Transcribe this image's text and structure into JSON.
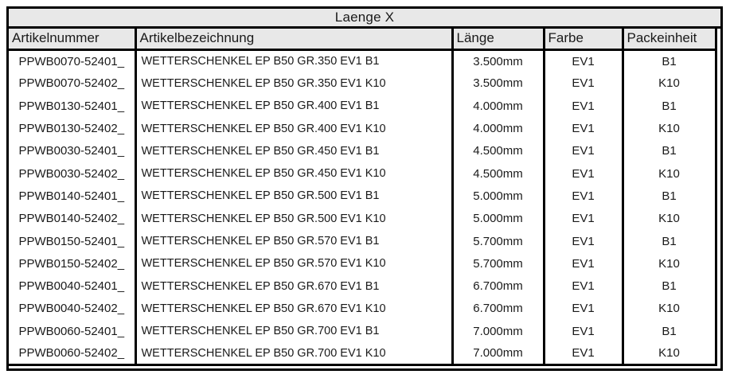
{
  "title": "Laenge X",
  "colors": {
    "header_bg": "#e8e8e8",
    "border": "#000000",
    "text": "#1a1a1a",
    "row_bg": "#ffffff"
  },
  "table": {
    "columns": [
      {
        "key": "artikelnummer",
        "label": "Artikelnummer"
      },
      {
        "key": "artikelbezeichnung",
        "label": "Artikelbezeichnung"
      },
      {
        "key": "laenge",
        "label": "Länge"
      },
      {
        "key": "farbe",
        "label": "Farbe"
      },
      {
        "key": "packeinheit",
        "label": "Packeinheit"
      }
    ],
    "rows": [
      {
        "artikelnummer": "PPWB0070-52401_",
        "artikelbezeichnung": "WETTERSCHENKEL EP B50 GR.350 EV1 B1",
        "laenge": "3.500mm",
        "farbe": "EV1",
        "packeinheit": "B1"
      },
      {
        "artikelnummer": "PPWB0070-52402_",
        "artikelbezeichnung": "WETTERSCHENKEL EP B50 GR.350 EV1 K10",
        "laenge": "3.500mm",
        "farbe": "EV1",
        "packeinheit": "K10"
      },
      {
        "artikelnummer": "PPWB0130-52401_",
        "artikelbezeichnung": "WETTERSCHENKEL EP B50 GR.400 EV1 B1",
        "laenge": "4.000mm",
        "farbe": "EV1",
        "packeinheit": "B1"
      },
      {
        "artikelnummer": "PPWB0130-52402_",
        "artikelbezeichnung": "WETTERSCHENKEL EP B50 GR.400 EV1 K10",
        "laenge": "4.000mm",
        "farbe": "EV1",
        "packeinheit": "K10"
      },
      {
        "artikelnummer": "PPWB0030-52401_",
        "artikelbezeichnung": "WETTERSCHENKEL EP B50 GR.450 EV1 B1",
        "laenge": "4.500mm",
        "farbe": "EV1",
        "packeinheit": "B1"
      },
      {
        "artikelnummer": "PPWB0030-52402_",
        "artikelbezeichnung": "WETTERSCHENKEL EP B50 GR.450 EV1 K10",
        "laenge": "4.500mm",
        "farbe": "EV1",
        "packeinheit": "K10"
      },
      {
        "artikelnummer": "PPWB0140-52401_",
        "artikelbezeichnung": "WETTERSCHENKEL EP B50 GR.500 EV1 B1",
        "laenge": "5.000mm",
        "farbe": "EV1",
        "packeinheit": "B1"
      },
      {
        "artikelnummer": "PPWB0140-52402_",
        "artikelbezeichnung": "WETTERSCHENKEL EP B50 GR.500 EV1 K10",
        "laenge": "5.000mm",
        "farbe": "EV1",
        "packeinheit": "K10"
      },
      {
        "artikelnummer": "PPWB0150-52401_",
        "artikelbezeichnung": "WETTERSCHENKEL EP B50 GR.570 EV1 B1",
        "laenge": "5.700mm",
        "farbe": "EV1",
        "packeinheit": "B1"
      },
      {
        "artikelnummer": "PPWB0150-52402_",
        "artikelbezeichnung": "WETTERSCHENKEL EP B50 GR.570 EV1 K10",
        "laenge": "5.700mm",
        "farbe": "EV1",
        "packeinheit": "K10"
      },
      {
        "artikelnummer": "PPWB0040-52401_",
        "artikelbezeichnung": "WETTERSCHENKEL EP B50 GR.670 EV1 B1",
        "laenge": "6.700mm",
        "farbe": "EV1",
        "packeinheit": "B1"
      },
      {
        "artikelnummer": "PPWB0040-52402_",
        "artikelbezeichnung": "WETTERSCHENKEL EP B50 GR.670 EV1 K10",
        "laenge": "6.700mm",
        "farbe": "EV1",
        "packeinheit": "K10"
      },
      {
        "artikelnummer": "PPWB0060-52401_",
        "artikelbezeichnung": "WETTERSCHENKEL EP B50 GR.700 EV1 B1",
        "laenge": "7.000mm",
        "farbe": "EV1",
        "packeinheit": "B1"
      },
      {
        "artikelnummer": "PPWB0060-52402_",
        "artikelbezeichnung": "WETTERSCHENKEL EP B50 GR.700 EV1 K10",
        "laenge": "7.000mm",
        "farbe": "EV1",
        "packeinheit": "K10"
      }
    ]
  }
}
